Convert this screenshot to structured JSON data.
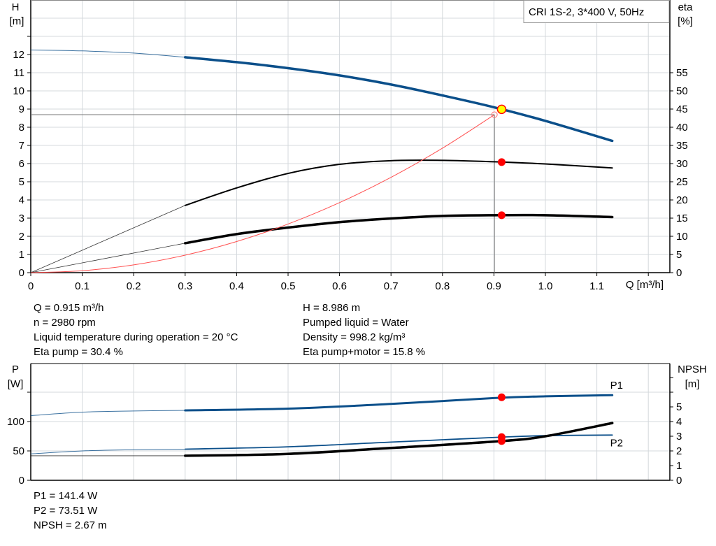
{
  "chart_data": [
    {
      "type": "line",
      "title": "CRI 1S-2, 3*400 V, 50Hz",
      "xlabel": "Q [m³/h]",
      "ylabel": "H\n[m]",
      "y2label": "eta\n[%]",
      "xlim": [
        0,
        1.24
      ],
      "ylim": [
        0,
        15
      ],
      "y2lim": [
        0,
        75
      ],
      "grid": true,
      "x_ticks": [
        "0",
        "0.1",
        "0.2",
        "0.3",
        "0.4",
        "0.5",
        "0.6",
        "0.7",
        "0.8",
        "0.9",
        "1.0",
        "1.1"
      ],
      "y_ticks": [
        "0",
        "1",
        "2",
        "3",
        "4",
        "5",
        "6",
        "7",
        "8",
        "9",
        "10",
        "11",
        "12"
      ],
      "y2_ticks": [
        "0",
        "5",
        "10",
        "15",
        "20",
        "25",
        "30",
        "35",
        "40",
        "45",
        "50",
        "55"
      ],
      "series": [
        {
          "id": "H",
          "axis": "y",
          "color": "#0b4f8a",
          "x": [
            0,
            0.1,
            0.2,
            0.3,
            0.4,
            0.5,
            0.6,
            0.7,
            0.8,
            0.9,
            1.0,
            1.13
          ],
          "y": [
            12.25,
            12.2,
            12.08,
            11.85,
            11.58,
            11.25,
            10.85,
            10.35,
            9.75,
            9.1,
            8.35,
            7.25
          ]
        },
        {
          "id": "eta_pump",
          "axis": "y2",
          "color": "#000000",
          "x": [
            0,
            0.3,
            0.4,
            0.5,
            0.6,
            0.7,
            0.8,
            0.9,
            1.0,
            1.13
          ],
          "y": [
            0,
            18.5,
            23.3,
            27.3,
            29.8,
            30.8,
            30.9,
            30.5,
            29.9,
            28.8
          ]
        },
        {
          "id": "eta_pump_motor",
          "axis": "y2",
          "color": "#000000",
          "x": [
            0,
            0.3,
            0.4,
            0.5,
            0.6,
            0.7,
            0.8,
            0.9,
            1.0,
            1.13
          ],
          "y": [
            0,
            8.1,
            10.6,
            12.4,
            13.9,
            14.9,
            15.6,
            15.8,
            15.8,
            15.3
          ]
        },
        {
          "id": "system_curve",
          "axis": "y",
          "color": "#ff5050",
          "x": [
            0,
            0.1,
            0.2,
            0.3,
            0.4,
            0.5,
            0.6,
            0.7,
            0.8,
            0.901
          ],
          "y": [
            0,
            0.107,
            0.428,
            0.963,
            1.712,
            2.675,
            3.852,
            5.243,
            6.848,
            8.69
          ]
        }
      ],
      "operating_point": {
        "Q": 0.915,
        "H": 8.986,
        "eta_pump": 30.4,
        "eta_pump_motor": 15.8
      },
      "requested_point": {
        "Q": 0.901,
        "H": 8.69
      }
    },
    {
      "type": "line",
      "ylabel": "P\n[W]",
      "y2label": "NPSH\n[m]",
      "xlim": [
        0,
        1.24
      ],
      "ylim": [
        0,
        200
      ],
      "y2lim": [
        0,
        8
      ],
      "grid": true,
      "y_ticks": [
        "0",
        "50",
        "100"
      ],
      "y2_ticks": [
        "0",
        "1",
        "2",
        "3",
        "4",
        "5"
      ],
      "series": [
        {
          "id": "P1",
          "name": "P1",
          "axis": "y",
          "color": "#0b4f8a",
          "x": [
            0,
            0.1,
            0.2,
            0.3,
            0.5,
            0.7,
            0.9,
            1.0,
            1.13
          ],
          "y": [
            110,
            116,
            118,
            119,
            122,
            130,
            140,
            143,
            145
          ]
        },
        {
          "id": "P2",
          "name": "P2",
          "axis": "y",
          "color": "#0b4f8a",
          "x": [
            0,
            0.1,
            0.2,
            0.3,
            0.5,
            0.7,
            0.915,
            1.0,
            1.13
          ],
          "y": [
            45,
            50,
            52,
            53,
            57,
            65,
            73.5,
            76,
            77
          ]
        },
        {
          "id": "NPSH",
          "axis": "y2",
          "color": "#000000",
          "x": [
            0,
            0.3,
            0.5,
            0.7,
            0.915,
            1.0,
            1.13
          ],
          "y": [
            1.67,
            1.67,
            1.8,
            2.2,
            2.67,
            3.0,
            3.9
          ]
        }
      ],
      "operating_point": {
        "Q": 0.915,
        "P1": 141.4,
        "P2": 73.51,
        "NPSH": 2.67
      }
    }
  ],
  "info": {
    "left": [
      "Q = 0.915 m³/h",
      "n = 2980 rpm",
      "Liquid temperature during operation = 20 °C",
      "Eta pump = 30.4 %"
    ],
    "right": [
      "H = 8.986 m",
      "Pumped liquid = Water",
      "Density = 998.2 kg/m³",
      "Eta pump+motor = 15.8 %"
    ],
    "bottom": [
      "P1 = 141.4 W",
      "P2 = 73.51 W",
      "NPSH = 2.67 m"
    ]
  },
  "colors": {
    "head": "#0b4f8a",
    "marker": "#ff0000",
    "op_fill": "#ffff00",
    "grid": "#d4d8dc"
  }
}
